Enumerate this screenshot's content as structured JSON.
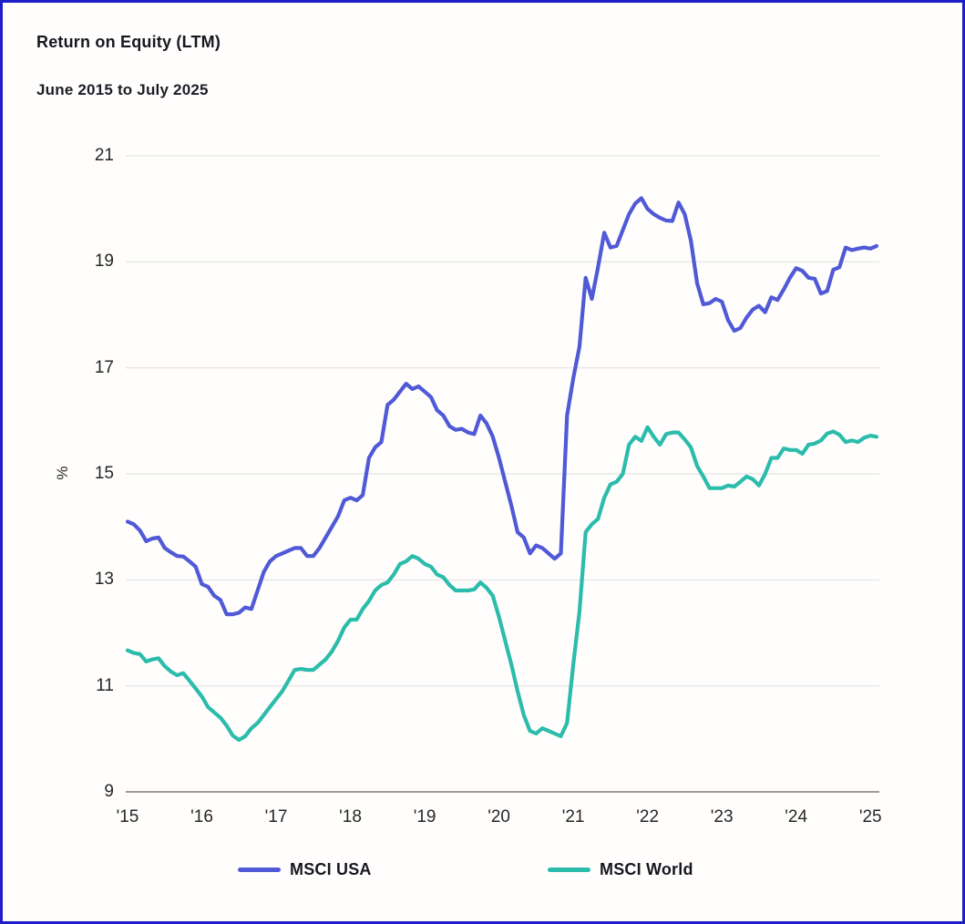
{
  "page": {
    "background": "#fffefd",
    "border_color": "#1e1ec6"
  },
  "header": {
    "title": "Return on Equity (LTM)",
    "subtitle": "June 2015 to July 2025"
  },
  "axis_style": {
    "grid_color": "#e8e8e8",
    "axis_line_color": "#9c9c9c",
    "tick_color": "#262626"
  },
  "chart_data": {
    "type": "line",
    "title": "Return on Equity (LTM)",
    "subtitle": "June 2015 to July 2025",
    "ylabel": "%",
    "xlabel": "",
    "ylim": [
      9,
      21
    ],
    "y_ticks": [
      21,
      19,
      17,
      15,
      13,
      11,
      9
    ],
    "x_tick_labels": [
      "'15",
      "'16",
      "'17",
      "'18",
      "'19",
      "'20",
      "'21",
      "'22",
      "'23",
      "'24",
      "'25"
    ],
    "x_tick_month_index": [
      0,
      12,
      24,
      36,
      48,
      60,
      72,
      84,
      96,
      108,
      120
    ],
    "x_range_note": "monthly values, June 2015 to July 2025",
    "grid": "horizontal",
    "legend_position": "bottom",
    "series": [
      {
        "name": "MSCI USA",
        "color": "#5059d6",
        "values": [
          14.1,
          14.05,
          13.93,
          13.73,
          13.78,
          13.8,
          13.6,
          13.52,
          13.45,
          13.44,
          13.35,
          13.25,
          12.92,
          12.87,
          12.7,
          12.62,
          12.35,
          12.35,
          12.38,
          12.48,
          12.45,
          12.8,
          13.15,
          13.35,
          13.45,
          13.5,
          13.55,
          13.6,
          13.6,
          13.45,
          13.45,
          13.6,
          13.8,
          14.0,
          14.2,
          14.5,
          14.55,
          14.5,
          14.6,
          15.3,
          15.5,
          15.6,
          16.3,
          16.4,
          16.55,
          16.7,
          16.6,
          16.65,
          16.55,
          16.45,
          16.2,
          16.1,
          15.9,
          15.83,
          15.85,
          15.78,
          15.75,
          16.1,
          15.95,
          15.7,
          15.3,
          14.85,
          14.4,
          13.9,
          13.8,
          13.5,
          13.65,
          13.6,
          13.5,
          13.4,
          13.5,
          16.1,
          16.8,
          17.4,
          18.7,
          18.3,
          18.9,
          19.55,
          19.27,
          19.3,
          19.6,
          19.9,
          20.1,
          20.2,
          20.0,
          19.9,
          19.83,
          19.78,
          19.77,
          20.12,
          19.9,
          19.4,
          18.6,
          18.2,
          18.22,
          18.3,
          18.25,
          17.9,
          17.7,
          17.75,
          17.95,
          18.1,
          18.17,
          18.05,
          18.33,
          18.28,
          18.48,
          18.7,
          18.88,
          18.83,
          18.7,
          18.68,
          18.4,
          18.45,
          18.85,
          18.9,
          19.27,
          19.22,
          19.25,
          19.27,
          19.25,
          19.3
        ]
      },
      {
        "name": "MSCI World",
        "color": "#2cbcab",
        "values": [
          11.67,
          11.62,
          11.6,
          11.46,
          11.5,
          11.52,
          11.37,
          11.27,
          11.2,
          11.24,
          11.1,
          10.95,
          10.8,
          10.6,
          10.5,
          10.4,
          10.25,
          10.06,
          9.98,
          10.05,
          10.2,
          10.3,
          10.45,
          10.6,
          10.75,
          10.9,
          11.1,
          11.3,
          11.32,
          11.3,
          11.3,
          11.4,
          11.5,
          11.65,
          11.85,
          12.1,
          12.25,
          12.25,
          12.45,
          12.6,
          12.8,
          12.9,
          12.95,
          13.1,
          13.3,
          13.35,
          13.45,
          13.4,
          13.3,
          13.25,
          13.1,
          13.05,
          12.9,
          12.8,
          12.8,
          12.8,
          12.82,
          12.95,
          12.85,
          12.7,
          12.3,
          11.85,
          11.4,
          10.9,
          10.45,
          10.15,
          10.1,
          10.2,
          10.15,
          10.1,
          10.05,
          10.3,
          11.4,
          12.4,
          13.9,
          14.05,
          14.15,
          14.55,
          14.8,
          14.85,
          15.0,
          15.55,
          15.7,
          15.62,
          15.88,
          15.7,
          15.55,
          15.75,
          15.78,
          15.78,
          15.65,
          15.5,
          15.15,
          14.95,
          14.73,
          14.73,
          14.73,
          14.78,
          14.76,
          14.85,
          14.95,
          14.9,
          14.78,
          15.0,
          15.3,
          15.3,
          15.48,
          15.45,
          15.45,
          15.38,
          15.55,
          15.57,
          15.63,
          15.76,
          15.8,
          15.74,
          15.6,
          15.63,
          15.6,
          15.68,
          15.72,
          15.7
        ]
      }
    ]
  },
  "legend": {
    "items": [
      {
        "label": "MSCI USA",
        "color": "#5059d6"
      },
      {
        "label": "MSCI World",
        "color": "#2cbcab"
      }
    ]
  }
}
